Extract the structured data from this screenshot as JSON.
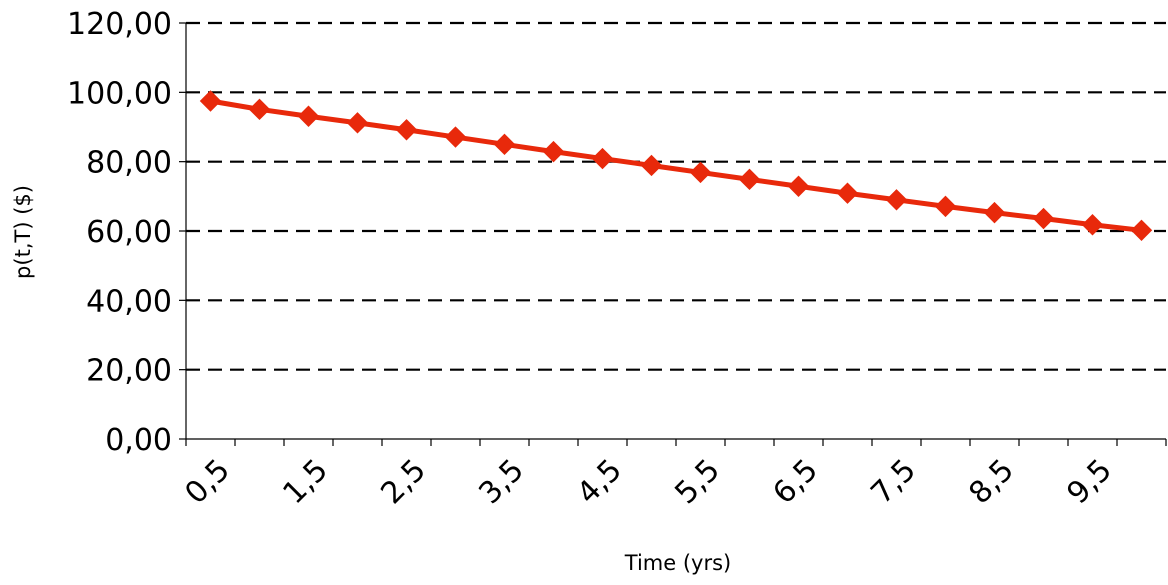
{
  "chart_data": {
    "type": "line",
    "title": "",
    "xlabel": "Time (yrs)",
    "ylabel": "p(t,T) ($)",
    "ylim": [
      0,
      120
    ],
    "y_ticks": [
      "0,00",
      "20,00",
      "40,00",
      "60,00",
      "80,00",
      "100,00",
      "120,00"
    ],
    "x_tick_labels": [
      "0,5",
      "1,5",
      "2,5",
      "3,5",
      "4,5",
      "5,5",
      "6,5",
      "7,5",
      "8,5",
      "9,5"
    ],
    "x": [
      0.5,
      1,
      1.5,
      2,
      2.5,
      3,
      3.5,
      4,
      4.5,
      5,
      5.5,
      6,
      6.5,
      7,
      7.5,
      8,
      8.5,
      9,
      9.5,
      10
    ],
    "series": [
      {
        "values": [
          97.5,
          95.1,
          93.1,
          91.2,
          89.2,
          87.1,
          85.0,
          82.9,
          80.9,
          78.9,
          76.9,
          74.9,
          72.9,
          70.9,
          69.0,
          67.1,
          65.3,
          63.6,
          61.8,
          60.2
        ],
        "color": "#e8290b",
        "marker": "diamond"
      }
    ],
    "grid": "horizontal dashed",
    "legend": "none"
  }
}
